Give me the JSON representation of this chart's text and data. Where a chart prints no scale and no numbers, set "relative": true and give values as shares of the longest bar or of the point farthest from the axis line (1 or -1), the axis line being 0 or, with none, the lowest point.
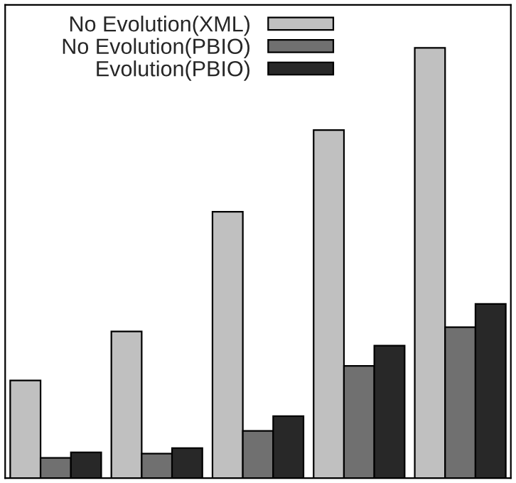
{
  "chart_data": {
    "type": "bar",
    "relative": true,
    "categories": [
      null,
      null,
      null,
      null,
      null
    ],
    "series": [
      {
        "name": "No Evolution(XML)",
        "color": "#c0c0c0",
        "values": [
          0.227,
          0.341,
          0.619,
          0.809,
          1
        ]
      },
      {
        "name": "No Evolution(PBIO)",
        "color": "#707070",
        "values": [
          0.047,
          0.057,
          0.11,
          0.261,
          0.351
        ]
      },
      {
        "name": "Evolution(PBIO)",
        "color": "#282828",
        "values": [
          0.06,
          0.07,
          0.144,
          0.308,
          0.405
        ]
      }
    ],
    "legend": "top",
    "grid": false
  }
}
